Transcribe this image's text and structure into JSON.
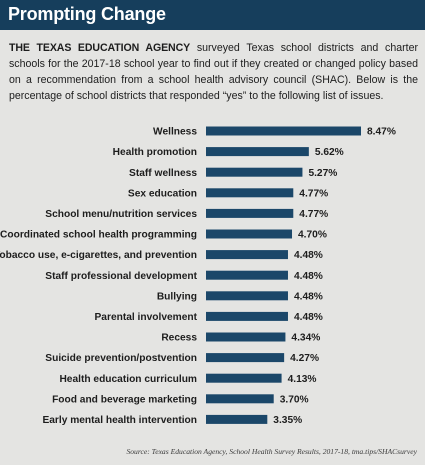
{
  "header": {
    "title": "Prompting Change"
  },
  "intro": {
    "lead": "THE TEXAS EDUCATION AGENCY",
    "body": " surveyed Texas school districts and charter schools for the 2017-18 school year to find out if they created or changed policy based on a recommendation from a school health advisory council (SHAC). Below is the percentage of school districts that responded “yes” to the following list of issues."
  },
  "source": "Source: Texas Education Agency, School Health Survey Results, 2017-18, tma.tips/SHACsurvey",
  "colors": {
    "bar": "#1b4769",
    "header": "#163e5c",
    "background": "#e4e4e2"
  },
  "chart_data": {
    "type": "bar",
    "orientation": "horizontal",
    "categories": [
      "Wellness",
      "Health promotion",
      "Staff wellness",
      "Sex education",
      "School menu/nutrition services",
      "Coordinated school health programming",
      "Tobacco use, e-cigarettes, and prevention",
      "Staff professional development",
      "Bullying",
      "Parental involvement",
      "Recess",
      "Suicide prevention/postvention",
      "Health education curriculum",
      "Food and beverage marketing",
      "Early mental health intervention"
    ],
    "values": [
      8.47,
      5.62,
      5.27,
      4.77,
      4.77,
      4.7,
      4.48,
      4.48,
      4.48,
      4.48,
      4.34,
      4.27,
      4.13,
      3.7,
      3.35
    ],
    "value_labels": [
      "8.47%",
      "5.62%",
      "5.27%",
      "4.77%",
      "4.77%",
      "4.70%",
      "4.48%",
      "4.48%",
      "4.48%",
      "4.48%",
      "4.34%",
      "4.27%",
      "4.13%",
      "3.70%",
      "3.35%"
    ],
    "unit": "%",
    "title": "",
    "xlabel": "",
    "ylabel": "",
    "grid": false,
    "legend": "none"
  }
}
